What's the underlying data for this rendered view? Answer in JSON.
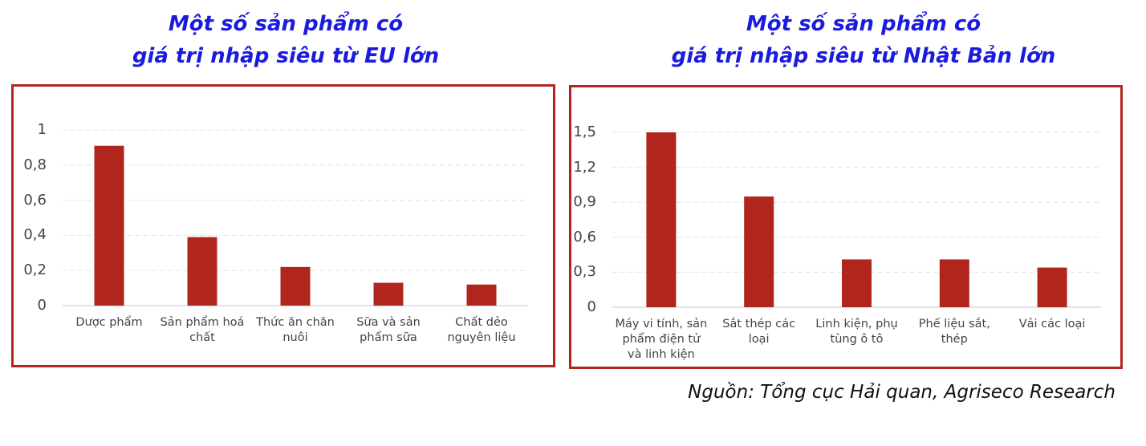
{
  "chart_data": [
    {
      "type": "bar",
      "title": "Một số sản phẩm có\ngiá trị nhập siêu từ EU lớn",
      "categories": [
        "Dược phẩm",
        "Sản phẩm hoá chất",
        "Thức ăn chăn nuôi",
        "Sữa và sản phẩm sữa",
        "Chất dẻo nguyên liệu"
      ],
      "values": [
        0.91,
        0.39,
        0.22,
        0.13,
        0.12
      ],
      "color": "#b0261c",
      "ylim": [
        0,
        1
      ],
      "yticks": [
        0,
        {
          "value": 0.2,
          "label": "0,2"
        },
        {
          "value": 0.4,
          "label": "0,4"
        },
        {
          "value": 0.6,
          "label": "0,6"
        },
        {
          "value": 0.8,
          "label": "0,8"
        },
        1
      ],
      "grid": true
    },
    {
      "type": "bar",
      "title": "Một số sản phẩm có\ngiá trị nhập siêu từ Nhật Bản lớn",
      "categories": [
        "Máy vi tính, sản phẩm điện tử và linh kiện",
        "Sắt thép các loại",
        "Linh kiện, phụ tùng ô tô",
        "Phế liệu sắt, thép",
        "Vải các loại"
      ],
      "values": [
        1.5,
        0.95,
        0.41,
        0.41,
        0.34
      ],
      "color": "#b0261c",
      "ylim": [
        0,
        1.5
      ],
      "yticks": [
        0,
        {
          "value": 0.3,
          "label": "0,3"
        },
        {
          "value": 0.6,
          "label": "0,6"
        },
        {
          "value": 0.9,
          "label": "0,9"
        },
        {
          "value": 1.2,
          "label": "1,2"
        },
        {
          "value": 1.5,
          "label": "1,5"
        }
      ],
      "grid": true
    }
  ],
  "source": "Nguồn: Tổng cục Hải quan, Agriseco Research"
}
